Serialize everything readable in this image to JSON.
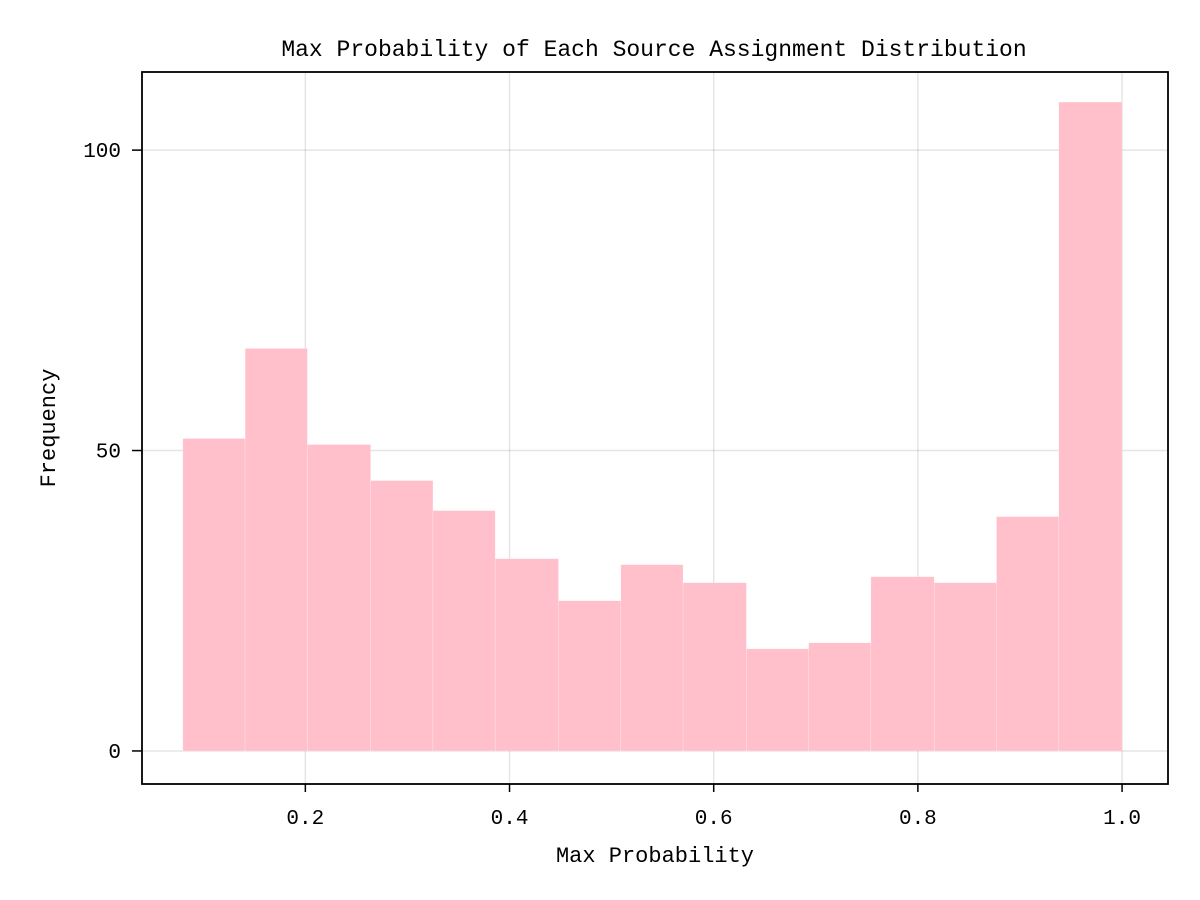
{
  "chart_data": {
    "type": "bar",
    "title": "Max Probability of Each Source Assignment Distribution",
    "xlabel": "Max Probability",
    "ylabel": "Frequency",
    "xlim": [
      0.04,
      1.045
    ],
    "ylim": [
      -5.5,
      113
    ],
    "xticks": [
      0.2,
      0.4,
      0.6,
      0.8,
      1.0
    ],
    "xtick_labels": [
      "0.2",
      "0.4",
      "0.6",
      "0.8",
      "1.0"
    ],
    "yticks": [
      0,
      50,
      100
    ],
    "ytick_labels": [
      "0",
      "50",
      "100"
    ],
    "grid": true,
    "legend": "none",
    "bar_color": "#ffc0cb",
    "bins": [
      {
        "x0": 0.08,
        "x1": 0.141,
        "value": 52
      },
      {
        "x0": 0.141,
        "x1": 0.202,
        "value": 67
      },
      {
        "x0": 0.202,
        "x1": 0.264,
        "value": 51
      },
      {
        "x0": 0.264,
        "x1": 0.325,
        "value": 45
      },
      {
        "x0": 0.325,
        "x1": 0.386,
        "value": 40
      },
      {
        "x0": 0.386,
        "x1": 0.448,
        "value": 32
      },
      {
        "x0": 0.448,
        "x1": 0.509,
        "value": 25
      },
      {
        "x0": 0.509,
        "x1": 0.57,
        "value": 31
      },
      {
        "x0": 0.57,
        "x1": 0.632,
        "value": 28
      },
      {
        "x0": 0.632,
        "x1": 0.693,
        "value": 17
      },
      {
        "x0": 0.693,
        "x1": 0.754,
        "value": 18
      },
      {
        "x0": 0.754,
        "x1": 0.816,
        "value": 29
      },
      {
        "x0": 0.816,
        "x1": 0.877,
        "value": 28
      },
      {
        "x0": 0.877,
        "x1": 0.938,
        "value": 39
      },
      {
        "x0": 0.938,
        "x1": 1.0,
        "value": 108
      }
    ]
  }
}
